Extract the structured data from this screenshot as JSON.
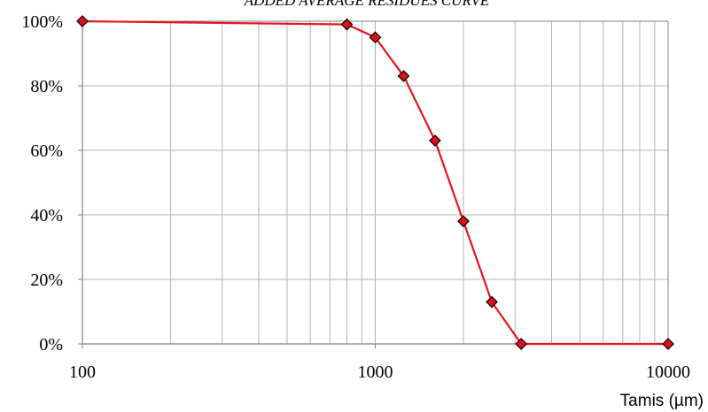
{
  "chart_data": {
    "type": "line",
    "title": "ADDED AVERAGE RESIDUES CURVE",
    "xlabel": "Tamis (µm)",
    "ylabel": "",
    "x_scale": "log",
    "xlim": [
      100,
      10000
    ],
    "ylim": [
      0,
      100
    ],
    "x_ticks": [
      "100",
      "1000",
      "10000"
    ],
    "y_ticks": [
      "0%",
      "20%",
      "40%",
      "60%",
      "80%",
      "100%"
    ],
    "grid": true,
    "series": [
      {
        "x": [
          100,
          800,
          1000,
          1250,
          1600,
          2000,
          2500,
          3150,
          10000
        ],
        "y": [
          100,
          99,
          95,
          83,
          63,
          38,
          13,
          0,
          0
        ]
      }
    ],
    "colors": {
      "line": "#e8141c",
      "marker_fill": "#e01018",
      "marker_stroke": "#000000",
      "grid": "#b3b3b3",
      "axis": "#808080"
    },
    "marker": "diamond"
  }
}
